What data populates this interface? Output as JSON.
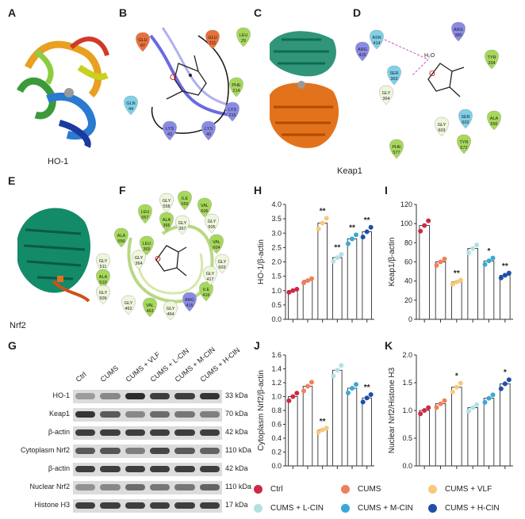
{
  "panels": {
    "A": "A",
    "B": "B",
    "C": "C",
    "D": "D",
    "E": "E",
    "F": "F",
    "G": "G",
    "H": "H",
    "I": "I",
    "J": "J",
    "K": "K"
  },
  "captions": {
    "ho1": "HO-1",
    "keap1": "Keap1",
    "nrf2": "Nrf2"
  },
  "docking_B": {
    "residues": [
      {
        "name": "GLU",
        "num": "47"
      },
      {
        "name": "GLU",
        "num": "211"
      },
      {
        "name": "LEU",
        "num": "29"
      },
      {
        "name": "PHE",
        "num": "214"
      },
      {
        "name": "LYS",
        "num": "215"
      },
      {
        "name": "LYS",
        "num": "40"
      },
      {
        "name": "LYS",
        "num": "43"
      },
      {
        "name": "GLN",
        "num": "44"
      }
    ],
    "ligand_atom": "O"
  },
  "docking_D": {
    "residues": [
      {
        "name": "ASN",
        "num": "414"
      },
      {
        "name": "ARG",
        "num": "415"
      },
      {
        "name": "ARG",
        "num": "380"
      },
      {
        "name": "SER",
        "num": "363"
      },
      {
        "name": "GLY",
        "num": "364"
      },
      {
        "name": "TYR",
        "num": "334"
      },
      {
        "name": "SER",
        "num": "602"
      },
      {
        "name": "GLY",
        "num": "603"
      },
      {
        "name": "TYR",
        "num": "572"
      },
      {
        "name": "ALA",
        "num": "556"
      },
      {
        "name": "PHE",
        "num": "577"
      }
    ],
    "water": "H₂O",
    "ligand_atom": "O"
  },
  "docking_F": {
    "residues": [
      {
        "name": "GLY",
        "num": "558"
      },
      {
        "name": "ILE",
        "num": "559"
      },
      {
        "name": "LEU",
        "num": "557"
      },
      {
        "name": "ALA",
        "num": "366"
      },
      {
        "name": "GLY",
        "num": "367"
      },
      {
        "name": "VAL",
        "num": "606"
      },
      {
        "name": "GLY",
        "num": "605"
      },
      {
        "name": "VAL",
        "num": "604"
      },
      {
        "name": "GLY",
        "num": "603"
      },
      {
        "name": "ALA",
        "num": "556"
      },
      {
        "name": "LEU",
        "num": "365"
      },
      {
        "name": "GLY",
        "num": "364"
      },
      {
        "name": "GLY",
        "num": "511"
      },
      {
        "name": "ALA",
        "num": "510"
      },
      {
        "name": "GLY",
        "num": "509"
      },
      {
        "name": "GLY",
        "num": "462"
      },
      {
        "name": "VAL",
        "num": "463"
      },
      {
        "name": "GLY",
        "num": "464"
      },
      {
        "name": "ARG",
        "num": "415"
      },
      {
        "name": "ILE",
        "num": "416"
      },
      {
        "name": "GLY",
        "num": "417"
      }
    ],
    "ligand_atom": "O"
  },
  "western": {
    "lanes": [
      "Ctrl",
      "CUMS",
      "CUMS + VLF",
      "CUMS + L-CIN",
      "CUMS + M-CIN",
      "CUMS + H-CIN"
    ],
    "rows": [
      {
        "name": "HO-1",
        "kda": "33 kDa",
        "intensity": [
          0.35,
          0.45,
          0.95,
          0.85,
          0.85,
          0.9
        ]
      },
      {
        "name": "Keap1",
        "kda": "70 kDa",
        "intensity": [
          0.9,
          0.7,
          0.45,
          0.6,
          0.55,
          0.5
        ]
      },
      {
        "name": "β-actin",
        "kda": "42 kDa",
        "intensity": [
          0.85,
          0.85,
          0.85,
          0.85,
          0.85,
          0.85
        ]
      },
      {
        "name": "Cytoplasm Nrf2",
        "kda": "110 kDa",
        "intensity": [
          0.7,
          0.72,
          0.5,
          0.8,
          0.7,
          0.65
        ]
      },
      {
        "name": "β-actin",
        "kda": "42 kDa",
        "intensity": [
          0.85,
          0.85,
          0.85,
          0.85,
          0.85,
          0.85
        ]
      },
      {
        "name": "Nuclear Nrf2",
        "kda": "110 kDa",
        "intensity": [
          0.4,
          0.45,
          0.6,
          0.55,
          0.55,
          0.65
        ]
      },
      {
        "name": "Histone H3",
        "kda": "17 kDa",
        "intensity": [
          0.85,
          0.85,
          0.85,
          0.85,
          0.85,
          0.85
        ]
      }
    ]
  },
  "colors": [
    "#cc2a45",
    "#f0805a",
    "#f7c97a",
    "#b4e0e4",
    "#3aa8d6",
    "#1f4fa6"
  ],
  "chart_data": [
    {
      "panel": "H",
      "type": "bar",
      "ylabel": "HO-1/β-actin",
      "ylim": [
        0,
        4
      ],
      "yticks": [
        "0.0",
        "0.5",
        "1.0",
        "1.5",
        "2.0",
        "2.5",
        "3.0",
        "3.5",
        "4.0"
      ],
      "values": [
        1.0,
        1.35,
        3.35,
        2.15,
        2.8,
        3.05
      ],
      "sig": [
        "",
        "",
        "**",
        "**",
        "**",
        "**"
      ]
    },
    {
      "panel": "I",
      "type": "bar",
      "ylabel": "Keap1/β-actin",
      "ylim": [
        0,
        120
      ],
      "yticks": [
        "0",
        "20",
        "40",
        "60",
        "80",
        "100",
        "120"
      ],
      "values": [
        98,
        60,
        39,
        74,
        61,
        46
      ],
      "sig": [
        "",
        "",
        "**",
        "",
        "*",
        "**"
      ]
    },
    {
      "panel": "J",
      "type": "bar",
      "ylabel": "Cytoplasm Nrf2/β-actin",
      "ylim": [
        0,
        1.6
      ],
      "yticks": [
        "0.0",
        "0.2",
        "0.4",
        "0.6",
        "0.8",
        "1.0",
        "1.2",
        "1.4",
        "1.6"
      ],
      "values": [
        1.0,
        1.15,
        0.52,
        1.38,
        1.12,
        0.98
      ],
      "sig": [
        "",
        "",
        "**",
        "",
        "",
        "**"
      ]
    },
    {
      "panel": "K",
      "type": "bar",
      "ylabel": "Nuclear Nrf2/Histone H3",
      "ylim": [
        0,
        2.0
      ],
      "yticks": [
        "0.0",
        "0.5",
        "1.0",
        "1.5",
        "2.0"
      ],
      "values": [
        1.0,
        1.12,
        1.42,
        1.05,
        1.22,
        1.48
      ],
      "sig": [
        "",
        "",
        "*",
        "",
        "",
        "*"
      ]
    }
  ],
  "legend": [
    "Ctrl",
    "CUMS",
    "CUMS + VLF",
    "CUMS + L-CIN",
    "CUMS + M-CIN",
    "CUMS + H-CIN"
  ]
}
